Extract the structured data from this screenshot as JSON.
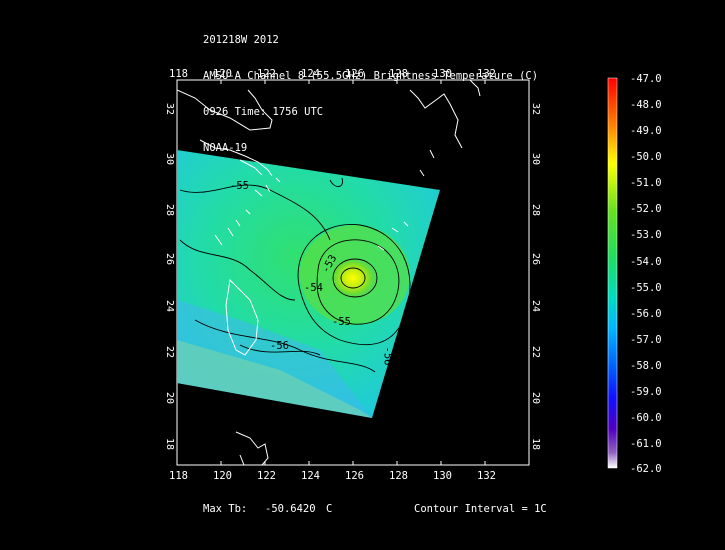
{
  "header": {
    "line1": "201218W 2012",
    "line2": "AMSU-A Channel 8 (55.5GHz) Brightness Temperature (C)",
    "line3": "0926 Time: 1756 UTC",
    "line4": "NOAA-19"
  },
  "axes": {
    "lon_top": [
      "118",
      "120",
      "122",
      "124",
      "126",
      "128",
      "130",
      "132"
    ],
    "lon_bottom": [
      "118",
      "120",
      "122",
      "124",
      "126",
      "128",
      "130",
      "132"
    ],
    "lat_left": [
      "32",
      "30",
      "28",
      "26",
      "24",
      "22",
      "20",
      "18"
    ],
    "lat_right": [
      "32",
      "30",
      "28",
      "26",
      "24",
      "22",
      "20",
      "18"
    ]
  },
  "contour_labels": [
    "-55",
    "-53",
    "-54",
    "-55",
    "-56",
    "-56"
  ],
  "colorbar": {
    "labels": [
      "-47.0",
      "-48.0",
      "-49.0",
      "-50.0",
      "-51.0",
      "-52.0",
      "-53.0",
      "-54.0",
      "-55.0",
      "-56.0",
      "-57.0",
      "-58.0",
      "-59.0",
      "-60.0",
      "-61.0",
      "-62.0"
    ],
    "colors": {
      "top": "#ff0000",
      "orange": "#ff8800",
      "yellow": "#ffff00",
      "green": "#33dd33",
      "cyan": "#00ccff",
      "blue": "#0000ff",
      "purple": "#6600aa",
      "bottom": "#ffffff"
    }
  },
  "footer": {
    "max_tb_label": "Max Tb:",
    "max_tb_value": "-50.6420",
    "max_tb_unit": "C",
    "contour_interval": "Contour Interval = 1C"
  }
}
